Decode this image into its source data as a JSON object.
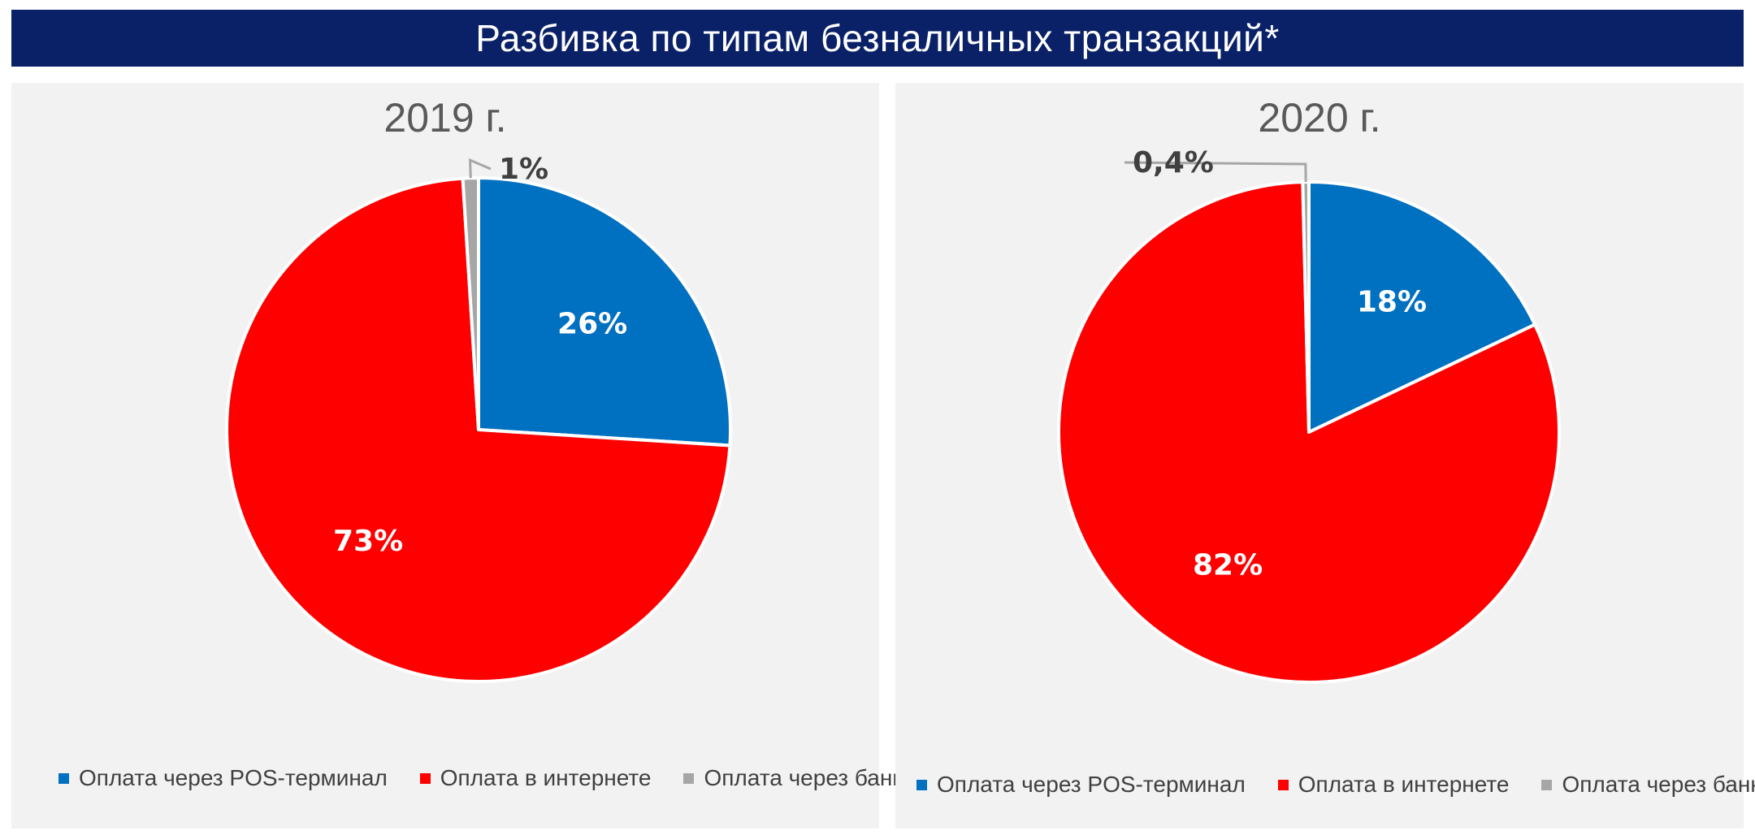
{
  "header": {
    "title": "Разбивка по типам безналичных транзакций*"
  },
  "legend_labels": [
    "Оплата через POS-терминал",
    "Оплата в интернете",
    "Оплата через банкомат"
  ],
  "colors": {
    "pos": "#0070c0",
    "internet": "#ff0000",
    "atm": "#a6a6a6",
    "banner": "#0a2168"
  },
  "chart_data": [
    {
      "type": "pie",
      "title": "2019 г.",
      "categories": [
        "Оплата через POS-терминал",
        "Оплата в интернете",
        "Оплата через банкомат"
      ],
      "values": [
        26,
        73,
        1
      ],
      "labels": [
        "26%",
        "73%",
        "1%"
      ],
      "legend": "bottom"
    },
    {
      "type": "pie",
      "title": "2020 г.",
      "categories": [
        "Оплата через POS-терминал",
        "Оплата в интернете",
        "Оплата через банкомат"
      ],
      "values": [
        18,
        82,
        0.4
      ],
      "labels": [
        "18%",
        "82%",
        "0,4%"
      ],
      "legend": "bottom"
    }
  ]
}
